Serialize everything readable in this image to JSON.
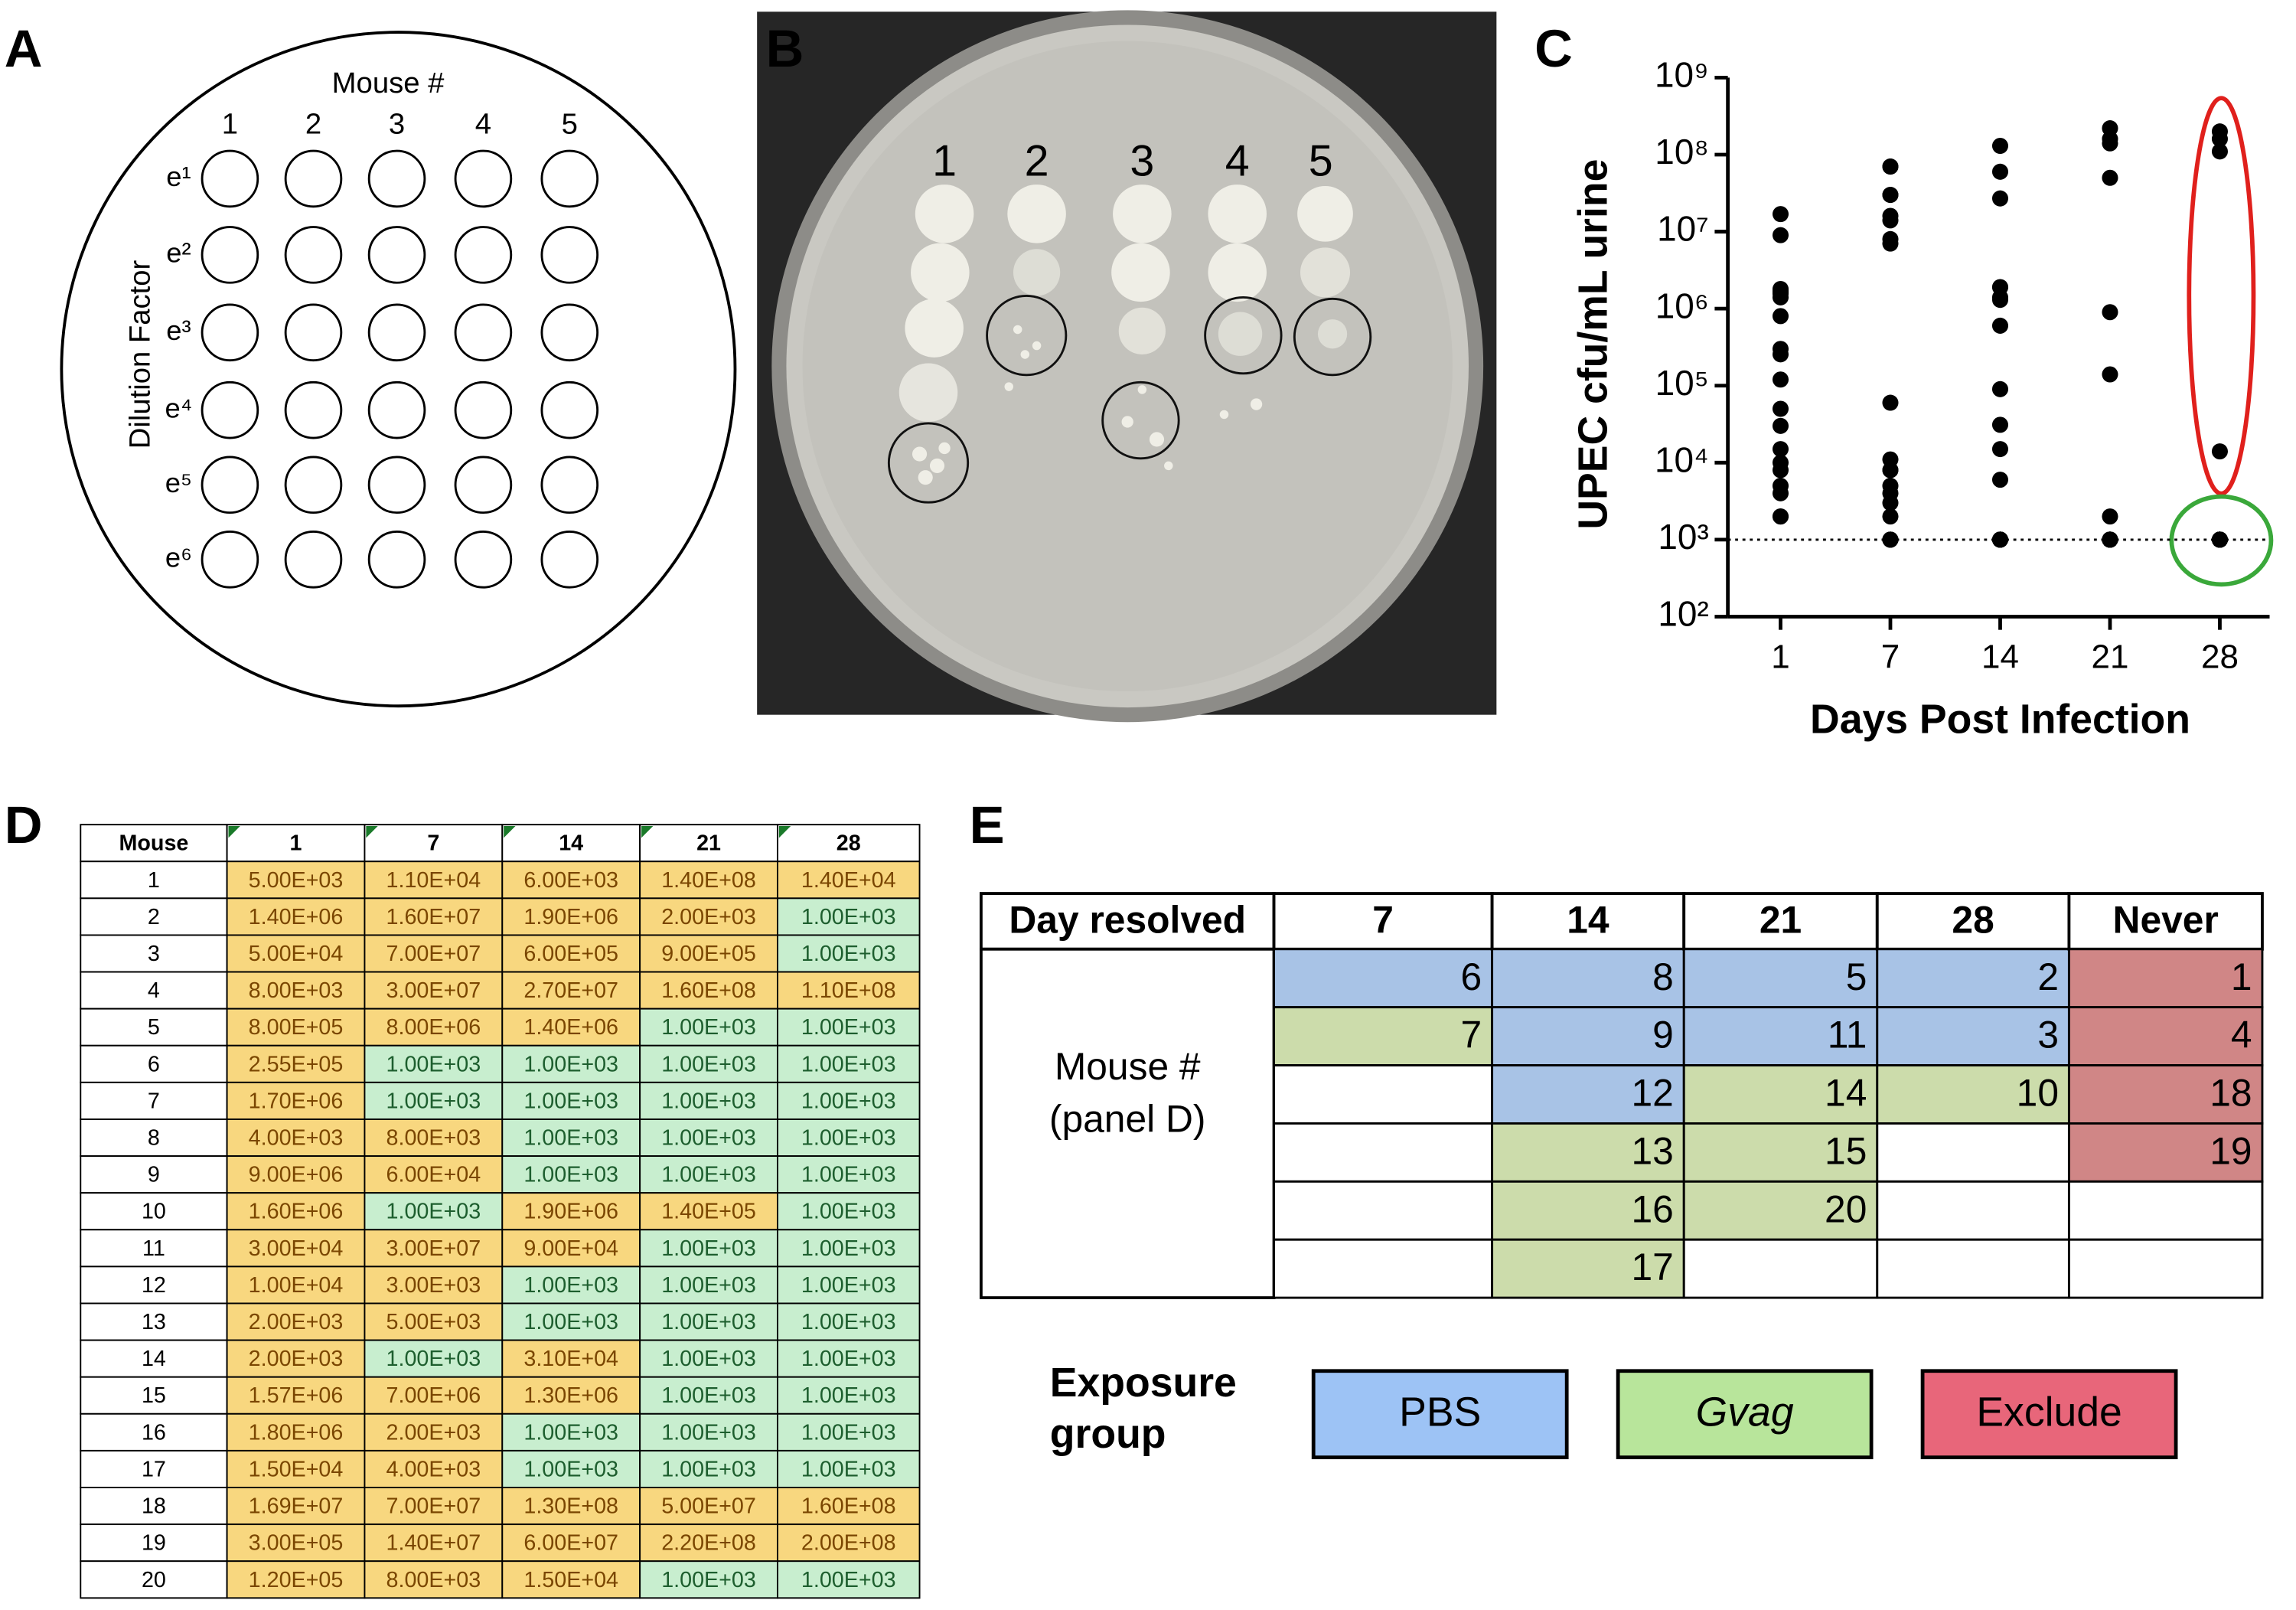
{
  "panel_labels": [
    "A",
    "B",
    "C",
    "D",
    "E"
  ],
  "panel_a": {
    "title": "Mouse #",
    "columns": [
      "1",
      "2",
      "3",
      "4",
      "5"
    ],
    "rows": [
      "e¹",
      "e²",
      "e³",
      "e⁴",
      "e⁵",
      "e⁶"
    ],
    "axis_label": "Dilution Factor"
  },
  "panel_b": {
    "labels": [
      "1",
      "2",
      "3",
      "4",
      "5"
    ]
  },
  "chart_data": {
    "type": "line",
    "log_y": true,
    "color": "#000000",
    "ylabel": "UPEC cfu/mL urine",
    "xlabel": "Days Post Infection",
    "categories": [
      "1",
      "7",
      "14",
      "21",
      "28"
    ],
    "ylim": [
      100,
      1000000000
    ],
    "yticks": [
      {
        "value": 100,
        "label": "10²"
      },
      {
        "value": 1000,
        "label": "10³"
      },
      {
        "value": 10000,
        "label": "10⁴"
      },
      {
        "value": 100000,
        "label": "10⁵"
      },
      {
        "value": 1000000,
        "label": "10⁶"
      },
      {
        "value": 10000000,
        "label": "10⁷"
      },
      {
        "value": 100000000,
        "label": "10⁸"
      },
      {
        "value": 1000000000,
        "label": "10⁹"
      }
    ],
    "reference_line": 1000,
    "series": [
      {
        "values": [
          5000,
          11000,
          6000,
          140000000,
          14000
        ]
      },
      {
        "values": [
          1400000,
          16000000,
          1900000,
          2000,
          1000
        ]
      },
      {
        "values": [
          50000,
          70000000,
          600000,
          900000,
          1000
        ]
      },
      {
        "values": [
          8000,
          30000000,
          27000000,
          160000000,
          110000000
        ]
      },
      {
        "values": [
          800000,
          8000000,
          1400000,
          1000,
          1000
        ]
      },
      {
        "values": [
          255000,
          1000,
          1000,
          1000,
          1000
        ]
      },
      {
        "values": [
          1700000,
          1000,
          1000,
          1000,
          1000
        ]
      },
      {
        "values": [
          4000,
          8000,
          1000,
          1000,
          1000
        ]
      },
      {
        "values": [
          9000000,
          60000,
          1000,
          1000,
          1000
        ]
      },
      {
        "values": [
          1600000,
          1000,
          1900000,
          140000,
          1000
        ]
      },
      {
        "values": [
          30000,
          30000000,
          90000,
          1000,
          1000
        ]
      },
      {
        "values": [
          10000,
          3000,
          1000,
          1000,
          1000
        ]
      },
      {
        "values": [
          2000,
          5000,
          1000,
          1000,
          1000
        ]
      },
      {
        "values": [
          2000,
          1000,
          31000,
          1000,
          1000
        ]
      },
      {
        "values": [
          1570000,
          7000000,
          1300000,
          1000,
          1000
        ]
      },
      {
        "values": [
          1800000,
          2000,
          1000,
          1000,
          1000
        ]
      },
      {
        "values": [
          15000,
          4000,
          1000,
          1000,
          1000
        ]
      },
      {
        "values": [
          16900000,
          70000000,
          130000000,
          50000000,
          160000000
        ]
      },
      {
        "values": [
          300000,
          14000000,
          60000000,
          220000000,
          200000000
        ]
      },
      {
        "values": [
          120000,
          8000,
          15000,
          1000,
          1000
        ]
      }
    ]
  },
  "table_d": {
    "header": [
      "Mouse",
      "1",
      "7",
      "14",
      "21",
      "28"
    ],
    "colors": {
      "above_limit": "#f8d77f",
      "at_limit": "#c8eecf",
      "above_text": "#7a4600",
      "at_text": "#1d5e2e"
    },
    "rows": [
      [
        "1",
        "5.00E+03",
        "1.10E+04",
        "6.00E+03",
        "1.40E+08",
        "1.40E+04"
      ],
      [
        "2",
        "1.40E+06",
        "1.60E+07",
        "1.90E+06",
        "2.00E+03",
        "1.00E+03"
      ],
      [
        "3",
        "5.00E+04",
        "7.00E+07",
        "6.00E+05",
        "9.00E+05",
        "1.00E+03"
      ],
      [
        "4",
        "8.00E+03",
        "3.00E+07",
        "2.70E+07",
        "1.60E+08",
        "1.10E+08"
      ],
      [
        "5",
        "8.00E+05",
        "8.00E+06",
        "1.40E+06",
        "1.00E+03",
        "1.00E+03"
      ],
      [
        "6",
        "2.55E+05",
        "1.00E+03",
        "1.00E+03",
        "1.00E+03",
        "1.00E+03"
      ],
      [
        "7",
        "1.70E+06",
        "1.00E+03",
        "1.00E+03",
        "1.00E+03",
        "1.00E+03"
      ],
      [
        "8",
        "4.00E+03",
        "8.00E+03",
        "1.00E+03",
        "1.00E+03",
        "1.00E+03"
      ],
      [
        "9",
        "9.00E+06",
        "6.00E+04",
        "1.00E+03",
        "1.00E+03",
        "1.00E+03"
      ],
      [
        "10",
        "1.60E+06",
        "1.00E+03",
        "1.90E+06",
        "1.40E+05",
        "1.00E+03"
      ],
      [
        "11",
        "3.00E+04",
        "3.00E+07",
        "9.00E+04",
        "1.00E+03",
        "1.00E+03"
      ],
      [
        "12",
        "1.00E+04",
        "3.00E+03",
        "1.00E+03",
        "1.00E+03",
        "1.00E+03"
      ],
      [
        "13",
        "2.00E+03",
        "5.00E+03",
        "1.00E+03",
        "1.00E+03",
        "1.00E+03"
      ],
      [
        "14",
        "2.00E+03",
        "1.00E+03",
        "3.10E+04",
        "1.00E+03",
        "1.00E+03"
      ],
      [
        "15",
        "1.57E+06",
        "7.00E+06",
        "1.30E+06",
        "1.00E+03",
        "1.00E+03"
      ],
      [
        "16",
        "1.80E+06",
        "2.00E+03",
        "1.00E+03",
        "1.00E+03",
        "1.00E+03"
      ],
      [
        "17",
        "1.50E+04",
        "4.00E+03",
        "1.00E+03",
        "1.00E+03",
        "1.00E+03"
      ],
      [
        "18",
        "1.69E+07",
        "7.00E+07",
        "1.30E+08",
        "5.00E+07",
        "1.60E+08"
      ],
      [
        "19",
        "3.00E+05",
        "1.40E+07",
        "6.00E+07",
        "2.20E+08",
        "2.00E+08"
      ],
      [
        "20",
        "1.20E+05",
        "8.00E+03",
        "1.50E+04",
        "1.00E+03",
        "1.00E+03"
      ]
    ]
  },
  "table_e": {
    "header_label": "Day resolved",
    "row_label": [
      "Mouse #",
      "(panel D)"
    ],
    "columns": [
      {
        "day": "7",
        "cells": [
          {
            "value": 6,
            "group": 0
          },
          {
            "value": 7,
            "group": 1
          }
        ]
      },
      {
        "day": "14",
        "cells": [
          {
            "value": 8,
            "group": 0
          },
          {
            "value": 9,
            "group": 0
          },
          {
            "value": 12,
            "group": 0
          },
          {
            "value": 13,
            "group": 1
          },
          {
            "value": 16,
            "group": 1
          },
          {
            "value": 17,
            "group": 1
          }
        ]
      },
      {
        "day": "21",
        "cells": [
          {
            "value": 5,
            "group": 0
          },
          {
            "value": 11,
            "group": 0
          },
          {
            "value": 14,
            "group": 1
          },
          {
            "value": 15,
            "group": 1
          },
          {
            "value": 20,
            "group": 1
          }
        ]
      },
      {
        "day": "28",
        "cells": [
          {
            "value": 2,
            "group": 0
          },
          {
            "value": 3,
            "group": 0
          },
          {
            "value": 10,
            "group": 1
          }
        ]
      },
      {
        "day": "Never",
        "cells": [
          {
            "value": 1,
            "group": 2
          },
          {
            "value": 4,
            "group": 2
          },
          {
            "value": 18,
            "group": 2
          },
          {
            "value": 19,
            "group": 2
          }
        ]
      }
    ]
  },
  "legend": {
    "title": [
      "Exposure",
      "group"
    ],
    "groups": [
      {
        "name": "PBS",
        "color": "#9dc3f5",
        "cell_color": "#a8c3e6",
        "italic": false
      },
      {
        "name": "Gvag",
        "color": "#b8e59b",
        "cell_color": "#ccdcab",
        "italic": true
      },
      {
        "name": "Exclude",
        "color": "#e8667a",
        "cell_color": "#d08686",
        "italic": false
      }
    ]
  }
}
